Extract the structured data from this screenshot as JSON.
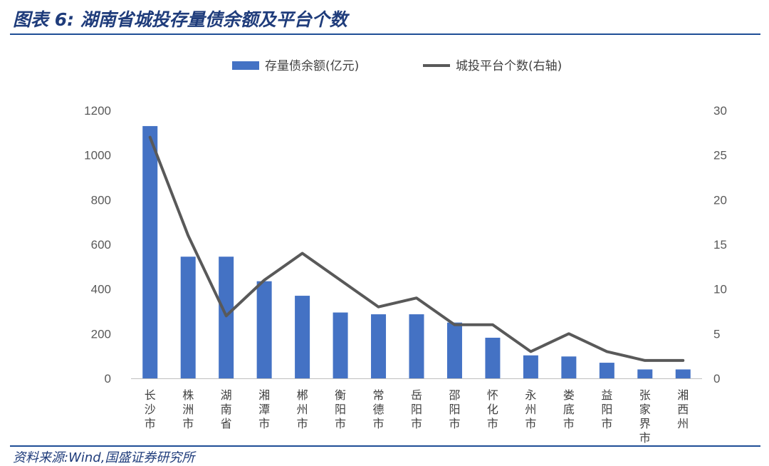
{
  "figure": {
    "title": "图表 6:  湖南省城投存量债余额及平台个数",
    "source": "资料来源:Wind,国盛证券研究所"
  },
  "chart_data": {
    "type": "bar",
    "categories": [
      "长沙市",
      "株洲市",
      "湖南省",
      "湘潭市",
      "郴州市",
      "衡阳市",
      "常德市",
      "岳阳市",
      "邵阳市",
      "怀化市",
      "永州市",
      "娄底市",
      "益阳市",
      "张家界市",
      "湘西州"
    ],
    "series": [
      {
        "name": "存量债余额(亿元)",
        "type": "bar",
        "axis": "left",
        "values": [
          1130,
          545,
          545,
          435,
          370,
          295,
          287,
          287,
          250,
          182,
          103,
          98,
          70,
          40,
          40
        ]
      },
      {
        "name": "城投平台个数(右轴)",
        "type": "line",
        "axis": "right",
        "values": [
          27,
          16,
          7,
          11,
          14,
          11,
          8,
          9,
          6,
          6,
          3,
          5,
          3,
          2,
          2
        ]
      }
    ],
    "ylim": [
      0,
      1200
    ],
    "y_ticks": [
      0,
      200,
      400,
      600,
      800,
      1000,
      1200
    ],
    "y2lim": [
      0,
      30
    ],
    "y2_ticks": [
      0,
      5,
      10,
      15,
      20,
      25,
      30
    ],
    "legend_position": "top",
    "grid": false,
    "colors": {
      "bar": "#4472c4",
      "line": "#595959"
    }
  }
}
